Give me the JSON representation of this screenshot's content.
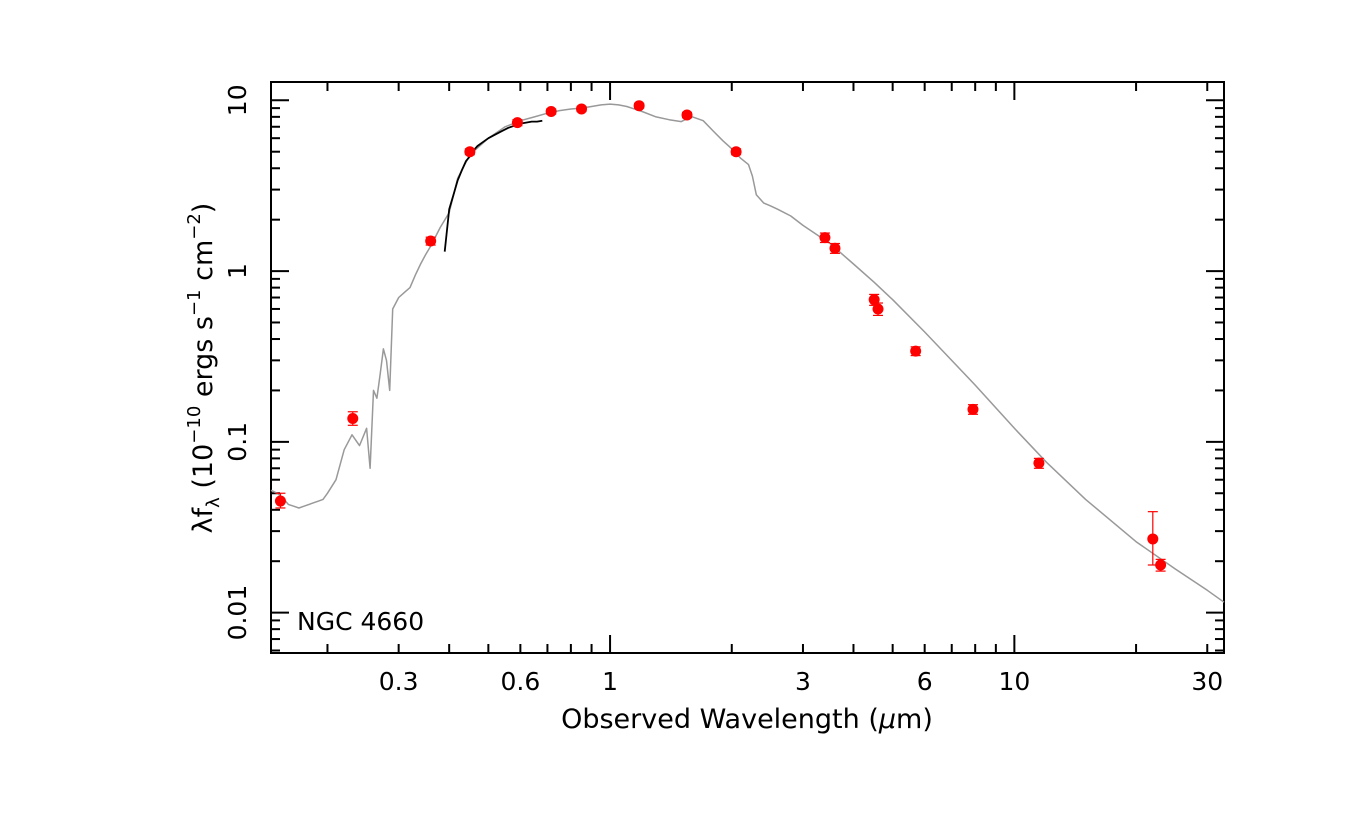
{
  "chart_data": {
    "type": "scatter",
    "xscale": "log",
    "yscale": "log",
    "xlim": [
      0.145,
      33
    ],
    "ylim": [
      0.0058,
      12.8
    ],
    "xticks": [
      {
        "value": 0.3,
        "label": "0.3"
      },
      {
        "value": 0.6,
        "label": "0.6"
      },
      {
        "value": 1,
        "label": "1"
      },
      {
        "value": 3,
        "label": "3"
      },
      {
        "value": 6,
        "label": "6"
      },
      {
        "value": 10,
        "label": "10"
      },
      {
        "value": 30,
        "label": "30"
      }
    ],
    "yticks": [
      {
        "value": 0.01,
        "label": "0.01"
      },
      {
        "value": 0.1,
        "label": "0.1"
      },
      {
        "value": 1,
        "label": "1"
      },
      {
        "value": 10,
        "label": "10"
      }
    ],
    "xlabel": "Observed Wavelength (μm)",
    "ylabel": "λfλ (10⁻¹⁰ ergs s⁻¹ cm⁻²)",
    "ylabel_parts": {
      "lambda": "λ",
      "f": "f",
      "sub": "λ",
      "open": " (10",
      "exp1": "−10",
      "mid1": " ergs s",
      "exp2": "−1",
      "mid2": " cm",
      "exp3": "−2",
      "close": ")"
    },
    "xlabel_parts": {
      "main": "Observed Wavelength (",
      "mu": "μ",
      "rest": "m)"
    },
    "annotation": "NGC 4660",
    "grid": false,
    "colors": {
      "points": "#ff0000",
      "model": "#999999",
      "spectrum": "#000000",
      "axes": "#000000"
    },
    "series": [
      {
        "name": "photometry",
        "kind": "points",
        "x": [
          0.153,
          0.231,
          0.36,
          0.45,
          0.59,
          0.715,
          0.85,
          1.18,
          1.55,
          2.05,
          3.4,
          3.6,
          4.5,
          4.6,
          5.7,
          7.9,
          11.5,
          22,
          23
        ],
        "y": [
          0.045,
          0.137,
          1.5,
          5.0,
          7.4,
          8.6,
          8.9,
          9.3,
          8.2,
          5.0,
          1.57,
          1.36,
          0.68,
          0.6,
          0.34,
          0.155,
          0.075,
          0.027,
          0.019
        ],
        "yerr_low": [
          0.041,
          0.125,
          1.42,
          4.8,
          7.1,
          8.3,
          8.6,
          9.0,
          7.9,
          4.8,
          1.47,
          1.27,
          0.63,
          0.55,
          0.32,
          0.145,
          0.07,
          0.019,
          0.0175
        ],
        "yerr_high": [
          0.05,
          0.15,
          1.58,
          5.2,
          7.7,
          8.9,
          9.2,
          9.6,
          8.5,
          5.2,
          1.67,
          1.45,
          0.73,
          0.65,
          0.36,
          0.165,
          0.08,
          0.039,
          0.0205
        ]
      },
      {
        "name": "model",
        "kind": "line",
        "x": [
          0.145,
          0.15,
          0.155,
          0.16,
          0.165,
          0.17,
          0.175,
          0.18,
          0.185,
          0.19,
          0.195,
          0.2,
          0.21,
          0.22,
          0.23,
          0.24,
          0.25,
          0.255,
          0.26,
          0.265,
          0.27,
          0.275,
          0.28,
          0.285,
          0.29,
          0.3,
          0.31,
          0.32,
          0.33,
          0.34,
          0.35,
          0.36,
          0.38,
          0.4,
          0.42,
          0.45,
          0.5,
          0.55,
          0.6,
          0.65,
          0.7,
          0.75,
          0.8,
          0.85,
          0.9,
          0.95,
          1.0,
          1.05,
          1.1,
          1.2,
          1.3,
          1.4,
          1.5,
          1.55,
          1.6,
          1.7,
          1.8,
          1.9,
          2.0,
          2.1,
          2.2,
          2.25,
          2.3,
          2.4,
          2.5,
          2.6,
          2.8,
          3.0,
          3.5,
          4.0,
          4.5,
          5.0,
          6.0,
          7.0,
          8.0,
          10.0,
          12.0,
          15.0,
          20.0,
          25.0,
          30.0,
          33.0
        ],
        "y": [
          0.052,
          0.05,
          0.047,
          0.043,
          0.042,
          0.041,
          0.042,
          0.043,
          0.044,
          0.045,
          0.046,
          0.05,
          0.06,
          0.09,
          0.11,
          0.095,
          0.12,
          0.07,
          0.2,
          0.18,
          0.25,
          0.35,
          0.3,
          0.2,
          0.6,
          0.7,
          0.75,
          0.8,
          0.95,
          1.1,
          1.25,
          1.4,
          1.8,
          2.2,
          3.5,
          4.8,
          6.0,
          7.0,
          7.6,
          8.0,
          8.4,
          8.7,
          8.9,
          9.0,
          9.2,
          9.4,
          9.5,
          9.4,
          9.2,
          8.6,
          8.0,
          7.7,
          7.5,
          7.8,
          8.0,
          7.6,
          6.6,
          5.8,
          5.2,
          4.6,
          4.2,
          3.6,
          2.8,
          2.5,
          2.4,
          2.3,
          2.1,
          1.85,
          1.45,
          1.1,
          0.86,
          0.68,
          0.44,
          0.3,
          0.215,
          0.12,
          0.076,
          0.046,
          0.026,
          0.018,
          0.0135,
          0.0115
        ]
      },
      {
        "name": "spectrum",
        "kind": "line",
        "x": [
          0.39,
          0.4,
          0.41,
          0.42,
          0.43,
          0.44,
          0.45,
          0.46,
          0.47,
          0.48,
          0.5,
          0.52,
          0.54,
          0.56,
          0.58,
          0.6,
          0.62,
          0.64,
          0.66,
          0.68
        ],
        "y": [
          1.3,
          2.3,
          2.8,
          3.4,
          3.9,
          4.4,
          4.7,
          5.1,
          5.4,
          5.6,
          6.0,
          6.3,
          6.6,
          6.9,
          7.1,
          7.3,
          7.4,
          7.5,
          7.5,
          7.6
        ]
      }
    ]
  }
}
